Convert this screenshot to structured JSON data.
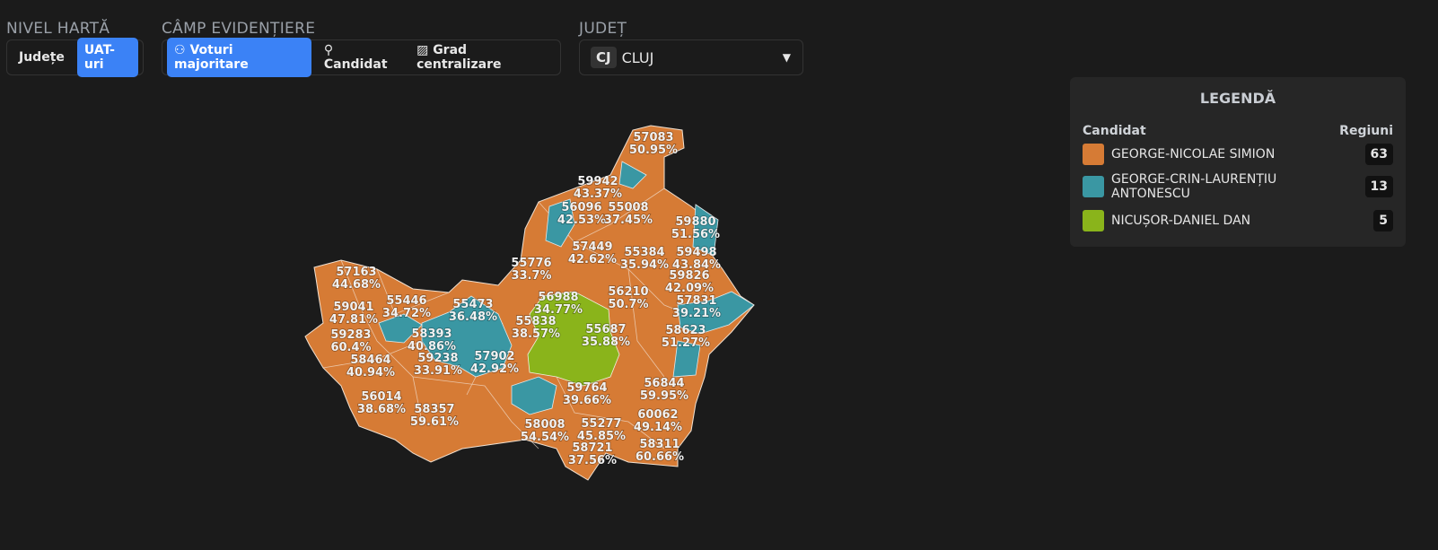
{
  "controls": {
    "map_level": {
      "label": "NIVEL HARTĂ",
      "options": [
        "Județe",
        "UAT-uri"
      ]
    },
    "highlight_field": {
      "label": "CÂMP EVIDENȚIERE",
      "options": [
        "Voturi majoritare",
        "Candidat",
        "Grad centralizare"
      ]
    },
    "county": {
      "label": "JUDEȚ",
      "code": "CJ",
      "name": "CLUJ"
    }
  },
  "legend": {
    "title": "LEGENDĂ",
    "headers": [
      "Candidat",
      "Regiuni"
    ],
    "rows": [
      {
        "name": "GEORGE-NICOLAE SIMION",
        "color": "#d67b35",
        "count": 63
      },
      {
        "name": "GEORGE-CRIN-LAURENȚIU ANTONESCU",
        "color": "#3a97a3",
        "count": 13
      },
      {
        "name": "NICUȘOR-DANIEL DAN",
        "color": "#8ab41b",
        "count": 5
      }
    ]
  },
  "map": {
    "regions": [
      {
        "code": "57083",
        "share": "50.95%"
      },
      {
        "code": "59942",
        "share": "43.37%"
      },
      {
        "code": "56096",
        "share": "42.53%"
      },
      {
        "code": "55008",
        "share": "37.45%"
      },
      {
        "code": "59880",
        "share": "51.56%"
      },
      {
        "code": "57449",
        "share": "42.62%"
      },
      {
        "code": "55384",
        "share": "35.94%"
      },
      {
        "code": "59498",
        "share": "43.84%"
      },
      {
        "code": "55776",
        "share": "33.7%"
      },
      {
        "code": "59826",
        "share": "42.09%"
      },
      {
        "code": "57163",
        "share": "44.68%"
      },
      {
        "code": "56988",
        "share": "34.77%"
      },
      {
        "code": "56210",
        "share": "50.7%"
      },
      {
        "code": "57831",
        "share": "39.21%"
      },
      {
        "code": "55446",
        "share": "34.72%"
      },
      {
        "code": "55473",
        "share": "36.48%"
      },
      {
        "code": "59041",
        "share": "47.81%"
      },
      {
        "code": "55838",
        "share": "38.57%"
      },
      {
        "code": "55687",
        "share": "35.88%"
      },
      {
        "code": "58623",
        "share": "51.27%"
      },
      {
        "code": "59283",
        "share": "60.4%"
      },
      {
        "code": "58393",
        "share": "40.86%"
      },
      {
        "code": "58464",
        "share": "40.94%"
      },
      {
        "code": "59238",
        "share": "33.91%"
      },
      {
        "code": "57902",
        "share": "42.92%"
      },
      {
        "code": "56844",
        "share": "59.95%"
      },
      {
        "code": "59764",
        "share": "39.66%"
      },
      {
        "code": "56014",
        "share": "38.68%"
      },
      {
        "code": "58357",
        "share": "59.61%"
      },
      {
        "code": "60062",
        "share": "49.14%"
      },
      {
        "code": "58008",
        "share": "54.54%"
      },
      {
        "code": "55277",
        "share": "45.85%"
      },
      {
        "code": "58721",
        "share": "37.56%"
      },
      {
        "code": "58311",
        "share": "60.66%"
      }
    ]
  }
}
